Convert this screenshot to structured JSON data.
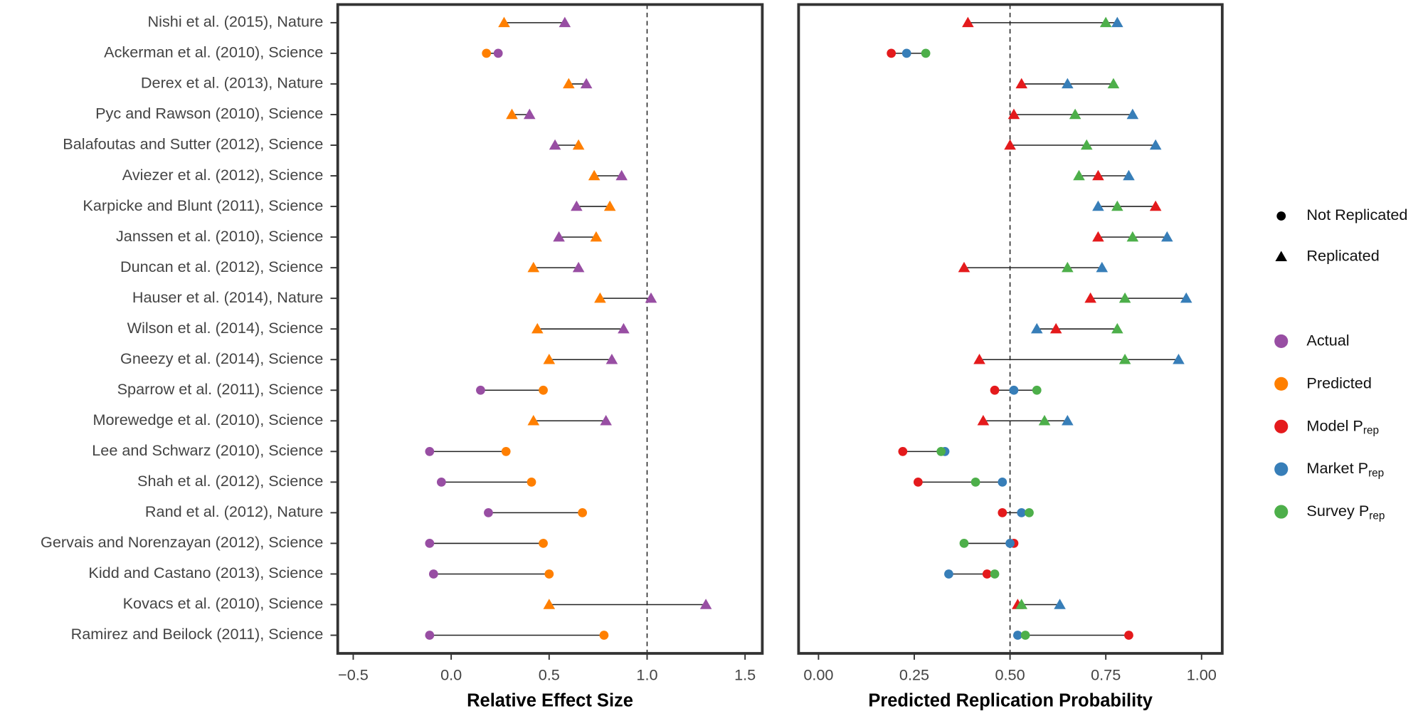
{
  "chart_data": [
    {
      "type": "dumbbell",
      "categories": [
        "Nishi et al. (2015), Nature",
        "Ackerman et al. (2010), Science",
        "Derex et al. (2013), Nature",
        "Pyc and Rawson (2010), Science",
        "Balafoutas and Sutter (2012), Science",
        "Aviezer et al. (2012), Science",
        "Karpicke and Blunt (2011), Science",
        "Janssen et al. (2010), Science",
        "Duncan et al. (2012), Science",
        "Hauser et al. (2014), Nature",
        "Wilson et al. (2014), Science",
        "Gneezy et al. (2014), Science",
        "Sparrow et al. (2011), Science",
        "Morewedge et al. (2010), Science",
        "Lee and Schwarz (2010), Science",
        "Shah et al. (2012), Science",
        "Rand et al. (2012), Nature",
        "Gervais and Norenzayan (2012), Science",
        "Kidd and Castano (2013), Science",
        "Kovacs et al. (2010), Science",
        "Ramirez and Beilock (2011), Science"
      ],
      "outcome": [
        "Replicated",
        "Not Replicated",
        "Replicated",
        "Replicated",
        "Replicated",
        "Replicated",
        "Replicated",
        "Replicated",
        "Replicated",
        "Replicated",
        "Replicated",
        "Replicated",
        "Not Replicated",
        "Replicated",
        "Not Replicated",
        "Not Replicated",
        "Not Replicated",
        "Not Replicated",
        "Not Replicated",
        "Replicated",
        "Not Replicated"
      ],
      "x_label": "Relative Effect Size",
      "xlim": [
        -0.579,
        1.588
      ],
      "xticks": [
        {
          "value": -0.5,
          "label": "−0.5"
        },
        {
          "value": 0,
          "label": "0.0"
        },
        0.5,
        {
          "value": 1,
          "label": "1.0"
        },
        1.5
      ],
      "reference_line": 1.0,
      "series": [
        {
          "name": "Actual",
          "color": "#984EA3",
          "values": [
            0.58,
            0.24,
            0.69,
            0.4,
            0.53,
            0.87,
            0.64,
            0.55,
            0.65,
            1.02,
            0.88,
            0.82,
            0.15,
            0.79,
            -0.11,
            -0.05,
            0.19,
            -0.11,
            -0.09,
            1.3,
            -0.11
          ]
        },
        {
          "name": "Predicted",
          "color": "#FF7F00",
          "values": [
            0.27,
            0.18,
            0.6,
            0.31,
            0.65,
            0.73,
            0.81,
            0.74,
            0.42,
            0.76,
            0.44,
            0.5,
            0.47,
            0.42,
            0.28,
            0.41,
            0.67,
            0.47,
            0.5,
            0.5,
            0.78
          ]
        }
      ]
    },
    {
      "type": "dumbbell",
      "x_label": "Predicted Replication Probability",
      "xlim": [
        -0.052,
        1.054
      ],
      "xticks": [
        {
          "value": 0,
          "label": "0.00"
        },
        0.25,
        {
          "value": 0.5,
          "label": "0.50"
        },
        0.75,
        {
          "value": 1,
          "label": "1.00"
        }
      ],
      "reference_line": 0.5,
      "series": [
        {
          "name": "Model P",
          "name_subscript": "rep",
          "color": "#E41A1C",
          "values": [
            0.39,
            0.19,
            0.53,
            0.51,
            0.5,
            0.73,
            0.88,
            0.73,
            0.38,
            0.71,
            0.62,
            0.42,
            0.46,
            0.43,
            0.22,
            0.26,
            0.48,
            0.51,
            0.44,
            0.52,
            0.81
          ]
        },
        {
          "name": "Market P",
          "name_subscript": "rep",
          "color": "#377EB8",
          "values": [
            0.78,
            0.23,
            0.65,
            0.82,
            0.88,
            0.81,
            0.73,
            0.91,
            0.74,
            0.96,
            0.57,
            0.94,
            0.51,
            0.65,
            0.33,
            0.48,
            0.53,
            0.5,
            0.34,
            0.63,
            0.52
          ]
        },
        {
          "name": "Survey P",
          "name_subscript": "rep",
          "color": "#4DAF4A",
          "values": [
            0.75,
            0.28,
            0.77,
            0.67,
            0.7,
            0.68,
            0.78,
            0.82,
            0.65,
            0.8,
            0.78,
            0.8,
            0.57,
            0.59,
            0.32,
            0.41,
            0.55,
            0.38,
            0.46,
            0.53,
            0.54
          ]
        }
      ]
    }
  ],
  "legend": {
    "shapes": [
      {
        "label": "Not Replicated",
        "marker": "circle"
      },
      {
        "label": "Replicated",
        "marker": "triangle"
      }
    ]
  }
}
